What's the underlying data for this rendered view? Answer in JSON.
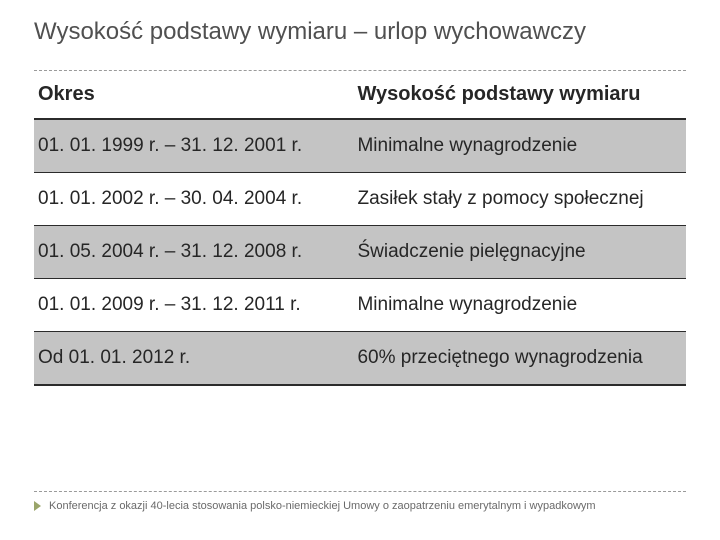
{
  "title": "Wysokość podstawy wymiaru – urlop wychowawczy",
  "table": {
    "columns": [
      "Okres",
      "Wysokość podstawy wymiaru"
    ],
    "rows": [
      {
        "c0": "01. 01. 1999 r. – 31. 12. 2001 r.",
        "c1": "Minimalne wynagrodzenie",
        "shade": true
      },
      {
        "c0": "01. 01. 2002 r. – 30. 04. 2004 r.",
        "c1": "Zasiłek stały z pomocy społecznej",
        "shade": false
      },
      {
        "c0": "01. 05. 2004 r. – 31. 12. 2008 r.",
        "c1": "Świadczenie pielęgnacyjne",
        "shade": true
      },
      {
        "c0": "01. 01. 2009 r. – 31. 12. 2011 r.",
        "c1": "Minimalne wynagrodzenie",
        "shade": false
      },
      {
        "c0": "Od 01. 01. 2012 r.",
        "c1": "60% przeciętnego wynagrodzenia",
        "shade": true
      }
    ]
  },
  "footer": "Konferencja z okazji 40-lecia stosowania polsko-niemieckiej Umowy o zaopatrzeniu emerytalnym i wypadkowym"
}
